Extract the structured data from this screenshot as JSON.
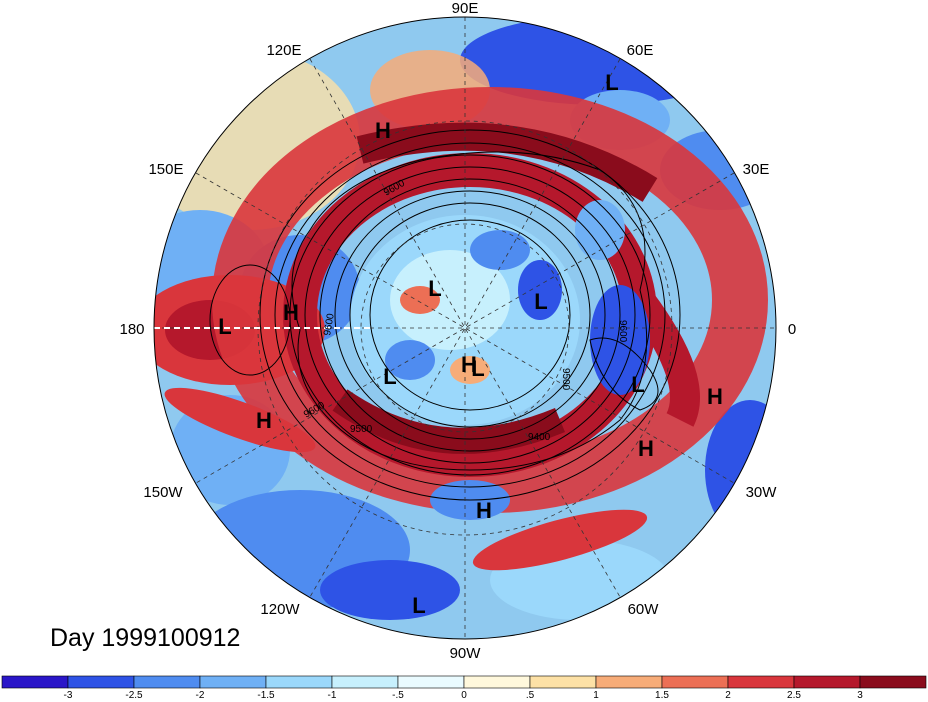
{
  "map": {
    "longitude_labels": [
      "90E",
      "60E",
      "30E",
      "0",
      "30W",
      "60W",
      "90W",
      "120W",
      "150W",
      "180",
      "150E",
      "120E"
    ],
    "pressure_markers": [
      {
        "label": "H"
      },
      {
        "label": "H"
      },
      {
        "label": "H"
      },
      {
        "label": "H"
      },
      {
        "label": "H"
      },
      {
        "label": "H"
      },
      {
        "label": "H"
      },
      {
        "label": "L"
      },
      {
        "label": "L"
      },
      {
        "label": "L"
      },
      {
        "label": "L"
      },
      {
        "label": "L"
      },
      {
        "label": "L"
      },
      {
        "label": "L"
      },
      {
        "label": "L"
      }
    ],
    "contour_labels": [
      "9600",
      "9500",
      "9600",
      "9400",
      "9500",
      "9600",
      "9600"
    ]
  },
  "title": "Day 1999100912",
  "colorbar": {
    "tick_labels": [
      "-3",
      "-2.5",
      "-2",
      "-1.5",
      "-1",
      "-.5",
      "0",
      ".5",
      "1",
      "1.5",
      "2",
      "2.5",
      "3"
    ],
    "colors": [
      "#2a16c8",
      "#2e53e6",
      "#4f8cf0",
      "#6fb0f5",
      "#9bd8fb",
      "#c7f0fd",
      "#eafbff",
      "#fff8dc",
      "#fde1a6",
      "#f7ac78",
      "#ec6f55",
      "#d9363c",
      "#b5182c",
      "#8a0c1c"
    ]
  }
}
